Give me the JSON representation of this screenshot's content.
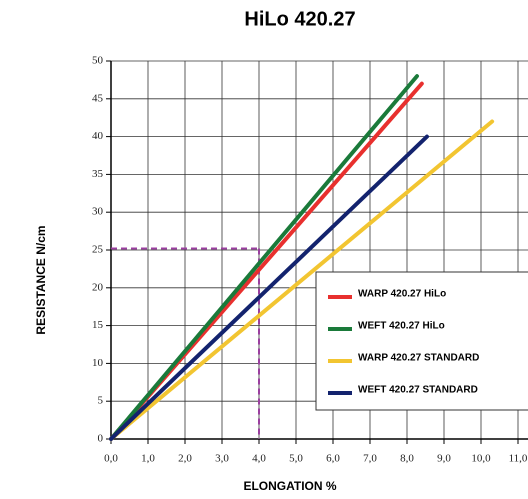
{
  "chart_data": {
    "type": "line",
    "title": "HiLo 420.27",
    "xlabel": "ELONGATION %",
    "ylabel": "RESISTANCE N/cm",
    "xlim": [
      0,
      11.5
    ],
    "ylim": [
      0,
      50
    ],
    "xticks": [
      {
        "value": 0,
        "label": "0,0"
      },
      {
        "value": 1,
        "label": "1,0"
      },
      {
        "value": 2,
        "label": "2,0"
      },
      {
        "value": 3,
        "label": "3,0"
      },
      {
        "value": 4,
        "label": "4,0"
      },
      {
        "value": 5,
        "label": "5,0"
      },
      {
        "value": 6,
        "label": "6,0"
      },
      {
        "value": 7,
        "label": "7,0"
      },
      {
        "value": 8,
        "label": "8,0"
      },
      {
        "value": 9,
        "label": "9,0"
      },
      {
        "value": 10,
        "label": "10,0"
      },
      {
        "value": 11,
        "label": "11,0"
      }
    ],
    "yticks": [
      0,
      5,
      10,
      15,
      20,
      25,
      30,
      35,
      40,
      45,
      50
    ],
    "grid": true,
    "legend": "lower right",
    "series": [
      {
        "name": "WARP 420.27 HiLo",
        "color": "#e8302e",
        "x": [
          0,
          8.4
        ],
        "values": [
          0,
          47
        ]
      },
      {
        "name": "WEFT 420.27 HiLo",
        "color": "#1a7a3a",
        "x": [
          0,
          8.27
        ],
        "values": [
          0,
          48
        ]
      },
      {
        "name": "WARP 420.27 STANDARD",
        "color": "#f2c531",
        "x": [
          0,
          10.3
        ],
        "values": [
          0,
          42
        ]
      },
      {
        "name": "WEFT 420.27 STANDARD",
        "color": "#13236e",
        "x": [
          0,
          8.54
        ],
        "values": [
          0,
          40
        ]
      }
    ],
    "reference": {
      "x": 4.0,
      "y": 25.2,
      "color": "#9b3fa0"
    }
  }
}
